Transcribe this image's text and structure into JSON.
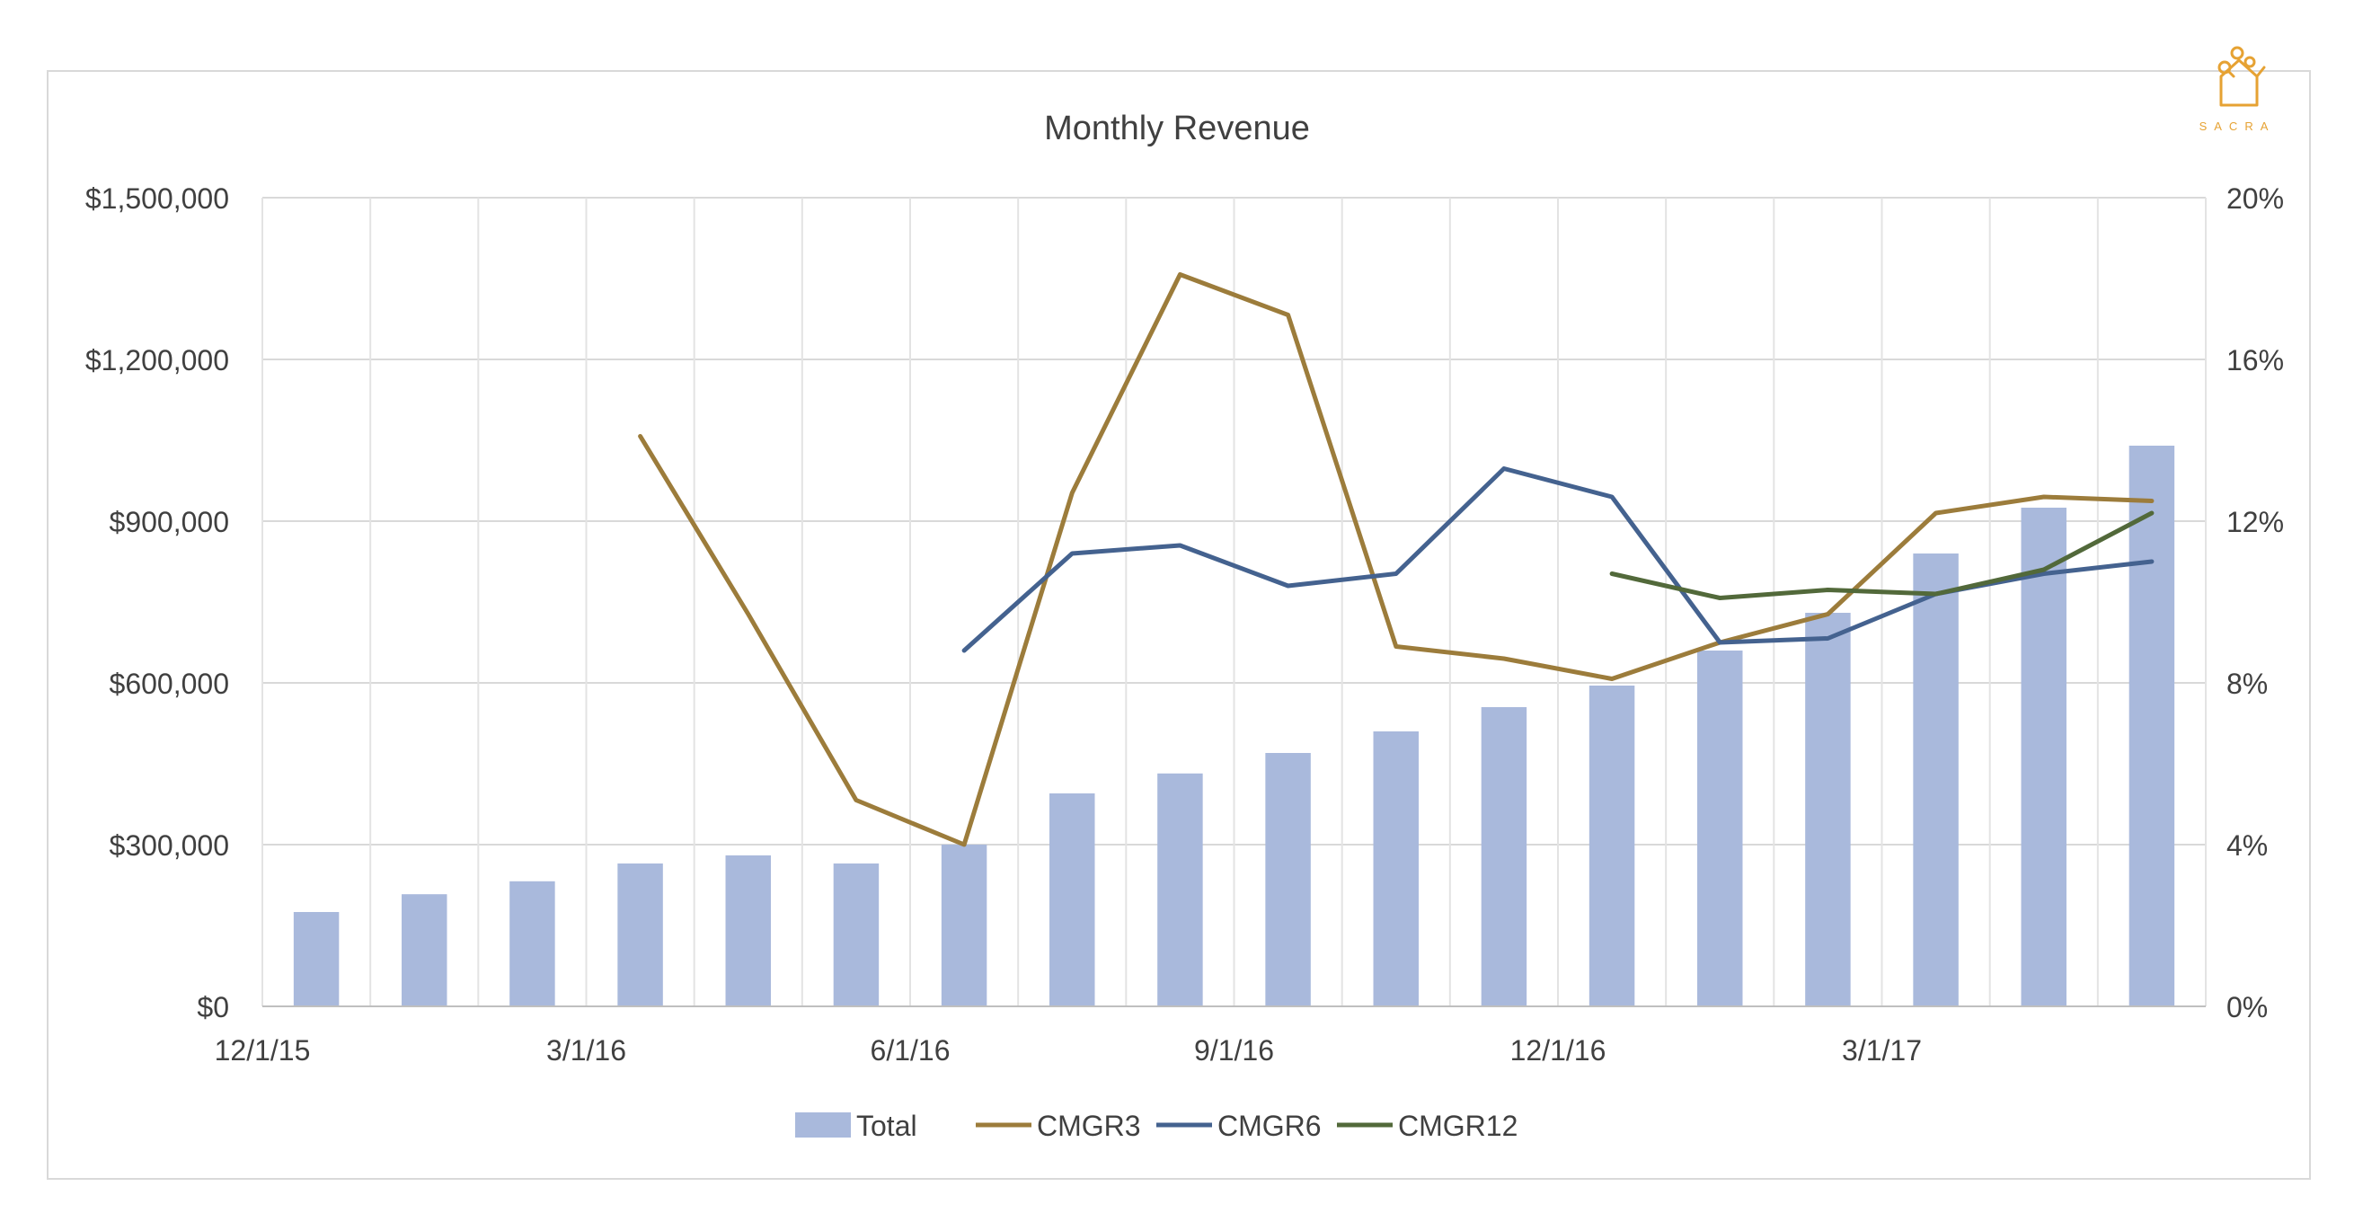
{
  "brand": {
    "name": "SACRA",
    "icon": "sacra-logo-icon",
    "color": "#e6a233"
  },
  "chart_data": {
    "type": "bar",
    "title": "Monthly Revenue",
    "xlabel": "",
    "ylabel": "",
    "y2label": "",
    "x_tick_labels": [
      "12/1/15",
      "3/1/16",
      "6/1/16",
      "9/1/16",
      "12/1/16",
      "3/1/17"
    ],
    "categories": [
      "12/1/15",
      "1/1/16",
      "2/1/16",
      "3/1/16",
      "4/1/16",
      "5/1/16",
      "6/1/16",
      "7/1/16",
      "8/1/16",
      "9/1/16",
      "10/1/16",
      "11/1/16",
      "12/1/16",
      "1/1/17",
      "2/1/17",
      "3/1/17",
      "4/1/17",
      "5/1/17"
    ],
    "y_ticks": [
      "$0",
      "$300,000",
      "$600,000",
      "$900,000",
      "$1,200,000",
      "$1,500,000"
    ],
    "y_tick_values": [
      0,
      300000,
      600000,
      900000,
      1200000,
      1500000
    ],
    "y2_ticks": [
      "0%",
      "4%",
      "8%",
      "12%",
      "16%",
      "20%"
    ],
    "y2_tick_values": [
      0,
      4,
      8,
      12,
      16,
      20
    ],
    "ylim": [
      0,
      1500000
    ],
    "y2lim": [
      0,
      20
    ],
    "grid": "vertical and horizontal",
    "legend_position": "bottom",
    "series": [
      {
        "name": "Total",
        "kind": "bar",
        "axis": "left",
        "color": "#a9b9dc",
        "values": [
          175000,
          208000,
          232000,
          265000,
          280000,
          265000,
          300000,
          395000,
          432000,
          470000,
          510000,
          555000,
          595000,
          660000,
          730000,
          840000,
          925000,
          1040000
        ]
      },
      {
        "name": "CMGR3",
        "kind": "line",
        "axis": "right",
        "color": "#9c7c3b",
        "values": [
          null,
          null,
          null,
          14.1,
          9.7,
          5.1,
          4.0,
          12.7,
          18.1,
          17.1,
          8.9,
          8.6,
          8.1,
          9.0,
          9.7,
          12.2,
          12.6,
          12.5
        ]
      },
      {
        "name": "CMGR6",
        "kind": "line",
        "axis": "right",
        "color": "#44628f",
        "values": [
          null,
          null,
          null,
          null,
          null,
          null,
          8.8,
          11.2,
          11.4,
          10.4,
          10.7,
          13.3,
          12.6,
          9.0,
          9.1,
          10.2,
          10.7,
          11.0
        ]
      },
      {
        "name": "CMGR12",
        "kind": "line",
        "axis": "right",
        "color": "#52693a",
        "values": [
          null,
          null,
          null,
          null,
          null,
          null,
          null,
          null,
          null,
          null,
          null,
          null,
          10.7,
          10.1,
          10.3,
          10.2,
          10.8,
          12.2
        ]
      }
    ]
  }
}
